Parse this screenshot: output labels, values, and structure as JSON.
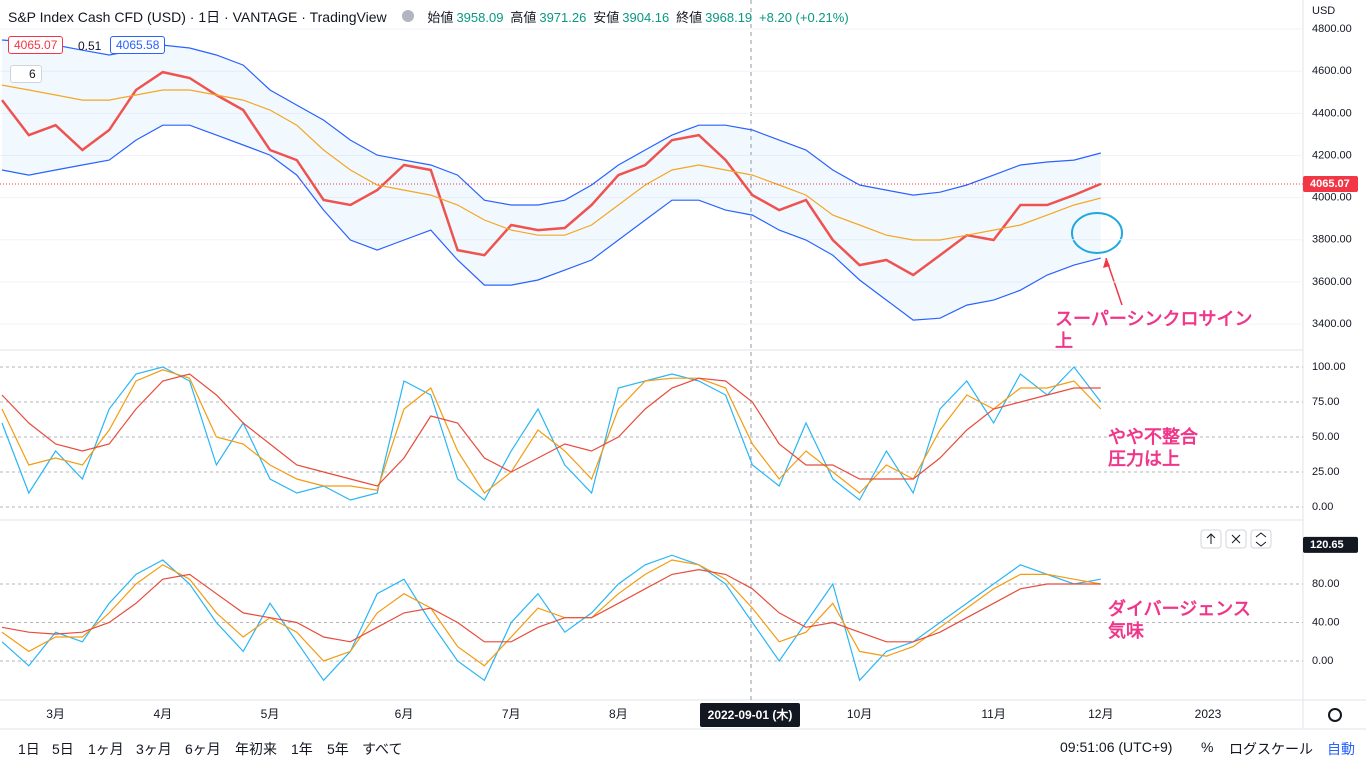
{
  "header": {
    "symbol": "S&P Index Cash CFD (USD) · 1日 · VANTAGE · TradingView",
    "open_label": "始値",
    "open": "3958.09",
    "high_label": "高値",
    "high": "3971.26",
    "low_label": "安値",
    "low": "3904.16",
    "close_label": "終値",
    "close": "3968.19",
    "change": "+8.20 (+0.21%)",
    "ind_value_1": "4065.07",
    "ind_value_2": "0.51",
    "ind_value_3": "4065.58",
    "ind_count": "6",
    "currency": "USD"
  },
  "toolbar": {
    "ranges": [
      "1日",
      "5日",
      "1ヶ月",
      "3ヶ月",
      "6ヶ月",
      "年初来",
      "1年",
      "5年",
      "すべて"
    ],
    "time": "09:51:06 (UTC+9)",
    "percent": "%",
    "log": "ログスケール",
    "auto": "自動"
  },
  "chart_data": {
    "type": "line",
    "crosshair_label": "2022-09-01 (木)",
    "categories": [
      null,
      null,
      "3月",
      null,
      null,
      null,
      "4月",
      null,
      null,
      null,
      "5月",
      null,
      null,
      null,
      null,
      "6月",
      null,
      null,
      null,
      "7月",
      null,
      null,
      null,
      "8月",
      null,
      null,
      null,
      null,
      null,
      null,
      null,
      null,
      "10月",
      null,
      null,
      null,
      null,
      "11月",
      null,
      null,
      null,
      "12月",
      null,
      null,
      null,
      "2023"
    ],
    "panes": [
      {
        "ylim": [
          3277,
          4938
        ],
        "grid": true,
        "yticks": [
          {
            "value": 3400,
            "label": "3400.00"
          },
          {
            "value": 3600,
            "label": "3600.00"
          },
          {
            "value": 3800,
            "label": "3800.00"
          },
          {
            "value": 4000,
            "label": "4000.00"
          },
          {
            "value": 4200,
            "label": "4200.00"
          },
          {
            "value": 4400,
            "label": "4400.00"
          },
          {
            "value": 4600,
            "label": "4600.00"
          },
          {
            "value": 4800,
            "label": "4800.00"
          }
        ],
        "last_value": 4065.07,
        "last_color": "#f23645",
        "annotation": [
          "スーパーシンクロサイン",
          "上"
        ],
        "series": [
          {
            "color": "#ef5350",
            "values": [
              4463,
              4297,
              4344,
              4226,
              4321,
              4511,
              4596,
              4568,
              4487,
              4416,
              4226,
              4178,
              3989,
              3965,
              4036,
              4155,
              4131,
              3751,
              3727,
              3870,
              3846,
              3856,
              3965,
              4107,
              4155,
              4273,
              4297,
              4178,
              4012,
              3941,
              3989,
              3799,
              3680,
              3704,
              3633,
              3727,
              3822,
              3799,
              3965,
              3965,
              4012,
              4065.07,
              null,
              null,
              null,
              null
            ]
          },
          {
            "color": "#2962ff",
            "values": [
              4748,
              4738,
              4724,
              4700,
              4677,
              4700,
              4724,
              4710,
              4677,
              4629,
              4511,
              4439,
              4368,
              4273,
              4202,
              4178,
              4155,
              4107,
              3988,
              3965,
              3965,
              3988,
              4060,
              4155,
              4226,
              4297,
              4344,
              4344,
              4321,
              4273,
              4226,
              4131,
              4060,
              4036,
              4012,
              4026,
              4060,
              4107,
              4155,
              4169,
              4178,
              4212,
              null,
              null,
              null,
              null
            ]
          },
          {
            "color": "#2962ff",
            "values": [
              4131,
              4107,
              4131,
              4155,
              4178,
              4273,
              4344,
              4344,
              4297,
              4250,
              4202,
              4107,
              3941,
              3799,
              3751,
              3799,
              3846,
              3704,
              3585,
              3585,
              3609,
              3656,
              3704,
              3799,
              3894,
              3988,
              3988,
              3941,
              3917,
              3846,
              3799,
              3727,
              3609,
              3514,
              3419,
              3428,
              3490,
              3514,
              3561,
              3633,
              3680,
              3713,
              null,
              null,
              null,
              null
            ]
          },
          {
            "color": "#f5a623",
            "values": [
              4534,
              4511,
              4487,
              4463,
              4463,
              4487,
              4511,
              4511,
              4487,
              4463,
              4416,
              4344,
              4226,
              4131,
              4060,
              4036,
              4012,
              3965,
              3894,
              3846,
              3822,
              3822,
              3870,
              3965,
              4060,
              4131,
              4155,
              4131,
              4107,
              4060,
              4012,
              3917,
              3870,
              3822,
              3799,
              3799,
              3822,
              3846,
              3870,
              3917,
              3965,
              3998,
              null,
              null,
              null,
              null
            ]
          }
        ]
      },
      {
        "ylim": [
          -8.6,
          111.4
        ],
        "grid": true,
        "yticks": [
          {
            "value": 0,
            "label": "0.00"
          },
          {
            "value": 25,
            "label": "25.00"
          },
          {
            "value": 50,
            "label": "50.00"
          },
          {
            "value": 75,
            "label": "75.00"
          },
          {
            "value": 100,
            "label": "100.00"
          }
        ],
        "annotation": [
          "やや不整合",
          "圧力は上"
        ],
        "series": [
          {
            "color": "#29b6f6",
            "values": [
              60,
              10,
              40,
              20,
              70,
              95,
              100,
              90,
              30,
              60,
              20,
              10,
              15,
              5,
              10,
              90,
              80,
              20,
              5,
              40,
              70,
              30,
              10,
              85,
              90,
              95,
              90,
              80,
              30,
              15,
              60,
              20,
              5,
              40,
              10,
              70,
              90,
              60,
              95,
              80,
              100,
              75,
              null,
              null,
              null,
              null
            ]
          },
          {
            "color": "#f39c12",
            "values": [
              70,
              30,
              35,
              30,
              55,
              90,
              98,
              92,
              50,
              45,
              30,
              20,
              15,
              15,
              12,
              70,
              85,
              40,
              10,
              25,
              55,
              40,
              20,
              70,
              90,
              92,
              92,
              85,
              45,
              20,
              40,
              25,
              10,
              30,
              20,
              55,
              80,
              70,
              85,
              85,
              90,
              70,
              null,
              null,
              null,
              null
            ]
          },
          {
            "color": "#e74c3c",
            "values": [
              80,
              60,
              45,
              40,
              45,
              70,
              90,
              95,
              80,
              60,
              45,
              30,
              25,
              20,
              15,
              35,
              65,
              60,
              35,
              25,
              35,
              45,
              40,
              50,
              70,
              85,
              92,
              90,
              75,
              45,
              30,
              30,
              20,
              20,
              20,
              35,
              55,
              70,
              75,
              80,
              85,
              85,
              null,
              null,
              null,
              null
            ]
          }
        ]
      },
      {
        "ylim": [
          -40.5,
          145.5
        ],
        "grid": true,
        "yticks": [
          {
            "value": 0,
            "label": "0.00"
          },
          {
            "value": 40,
            "label": "40.00"
          },
          {
            "value": 80,
            "label": "80.00"
          }
        ],
        "last_value": 120.65,
        "last_color": "#131722",
        "annotation": [
          "ダイバージェンス",
          "気味"
        ],
        "series": [
          {
            "color": "#29b6f6",
            "values": [
              20,
              -5,
              30,
              20,
              60,
              90,
              105,
              80,
              40,
              10,
              60,
              20,
              -20,
              10,
              70,
              85,
              40,
              0,
              -20,
              40,
              70,
              30,
              50,
              80,
              100,
              110,
              100,
              80,
              40,
              0,
              40,
              80,
              -20,
              10,
              20,
              40,
              60,
              80,
              100,
              90,
              80,
              85,
              null,
              null,
              null,
              null
            ]
          },
          {
            "color": "#f39c12",
            "values": [
              30,
              10,
              25,
              25,
              50,
              80,
              100,
              85,
              50,
              25,
              45,
              30,
              0,
              10,
              50,
              70,
              55,
              15,
              -5,
              25,
              55,
              45,
              45,
              70,
              90,
              105,
              100,
              85,
              55,
              20,
              30,
              60,
              10,
              5,
              15,
              35,
              55,
              75,
              90,
              90,
              85,
              80,
              null,
              null,
              null,
              null
            ]
          },
          {
            "color": "#e74c3c",
            "values": [
              35,
              30,
              28,
              30,
              40,
              60,
              85,
              90,
              70,
              50,
              45,
              40,
              25,
              20,
              35,
              50,
              55,
              40,
              20,
              20,
              35,
              45,
              45,
              60,
              75,
              90,
              95,
              90,
              75,
              50,
              35,
              40,
              30,
              20,
              20,
              30,
              45,
              60,
              75,
              80,
              80,
              80,
              null,
              null,
              null,
              null
            ]
          }
        ]
      }
    ]
  }
}
